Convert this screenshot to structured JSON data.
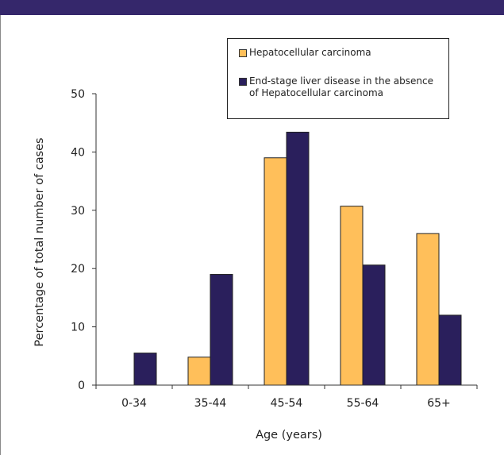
{
  "chart_data": {
    "type": "bar",
    "categories": [
      "0-34",
      "35-44",
      "45-54",
      "55-64",
      "65+"
    ],
    "series": [
      {
        "name": "Hepatocellular carcinoma",
        "color": "#ffbf5a",
        "values": [
          0,
          4.8,
          39,
          30.7,
          26
        ]
      },
      {
        "name": "End-stage liver disease in the absence of Hepatocellular carcinoma",
        "color": "#2a1f5c",
        "values": [
          5.5,
          19,
          43.4,
          20.6,
          12
        ]
      }
    ],
    "xlabel": "Age (years)",
    "ylabel": "Percentage of total number of cases",
    "ylim": [
      0,
      50
    ],
    "yticks": [
      0,
      10,
      20,
      30,
      40,
      50
    ],
    "grid": false,
    "legend": "top-right"
  }
}
